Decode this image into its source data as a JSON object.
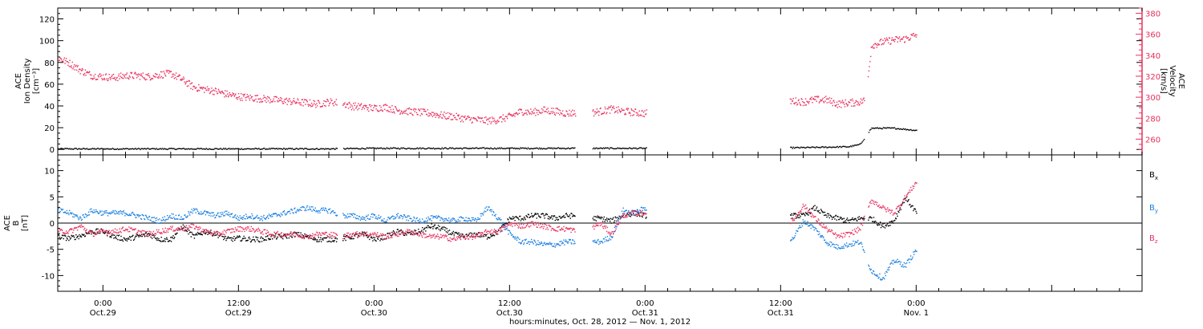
{
  "chart_data": [
    {
      "type": "scatter",
      "panel": "top",
      "ylabel_lines": [
        "ACE",
        "Ion Density",
        "[cm⁻³]"
      ],
      "y2label_lines": [
        "ACE",
        "Velocity",
        "[km/s]"
      ],
      "ylim": [
        -5,
        130
      ],
      "y2lim": [
        245,
        385
      ],
      "yticks": [
        0,
        20,
        40,
        60,
        80,
        100,
        120
      ],
      "y2ticks": [
        260,
        280,
        300,
        320,
        340,
        360,
        380
      ],
      "colors": {
        "density": "#000000",
        "velocity": "#e8305e",
        "axis2": "#e8305e"
      },
      "gaps_hours": [
        [
          20.7,
          21.2
        ],
        [
          41.8,
          43.3
        ],
        [
          48.1,
          60.8
        ],
        [
          67.4,
          67.7
        ]
      ],
      "series": [
        {
          "key": "density",
          "axis": "left",
          "color": "#000000",
          "x_hours": [
            -4,
            0,
            4,
            8,
            12,
            16,
            20,
            24,
            28,
            32,
            36,
            40,
            44,
            48,
            61,
            64,
            66,
            67,
            68,
            70,
            72
          ],
          "values": [
            1,
            1,
            1,
            1,
            1,
            1,
            1,
            1.5,
            1.5,
            1.5,
            1.5,
            1.5,
            1.5,
            1.5,
            2,
            2.5,
            3,
            5,
            20,
            20,
            18
          ]
        },
        {
          "key": "velocity",
          "axis": "right",
          "color": "#e8305e",
          "x_hours": [
            -4,
            -3,
            -2,
            -1,
            0,
            1,
            2,
            3,
            4,
            5,
            6,
            7,
            8,
            9,
            10,
            11,
            12,
            13,
            14,
            15,
            16,
            17,
            18,
            19,
            20,
            21,
            22,
            23,
            24,
            25,
            26,
            27,
            28,
            29,
            30,
            31,
            32,
            33,
            34,
            35,
            36,
            37,
            38,
            39,
            40,
            41,
            42,
            43,
            44,
            45,
            46,
            47,
            48,
            61,
            62,
            63,
            64,
            65,
            66,
            67,
            67.5,
            68,
            69,
            70,
            71,
            72
          ],
          "values": [
            338,
            333,
            326,
            321,
            320,
            319,
            321,
            321,
            320,
            322,
            323,
            317,
            310,
            308,
            306,
            303,
            301,
            300,
            299,
            298,
            297,
            296,
            295,
            294,
            296,
            295,
            292,
            291,
            290,
            291,
            288,
            287,
            286,
            285,
            283,
            282,
            280,
            279,
            278,
            279,
            282,
            287,
            286,
            288,
            287,
            285,
            286,
            285,
            287,
            289,
            287,
            286,
            285,
            297,
            296,
            298,
            298,
            294,
            295,
            296,
            298,
            350,
            353,
            355,
            356,
            360
          ]
        }
      ]
    },
    {
      "type": "scatter",
      "panel": "bottom",
      "ylabel_lines": [
        "ACE",
        "B",
        "[nT]"
      ],
      "ylim": [
        -13,
        13
      ],
      "yticks": [
        -10,
        -5,
        0,
        5,
        10
      ],
      "zero_line": true,
      "gaps_hours": [
        [
          20.7,
          21.2
        ],
        [
          41.8,
          43.3
        ],
        [
          48.1,
          60.8
        ],
        [
          67.4,
          67.7
        ]
      ],
      "legend": [
        "Bₓ",
        "Bᵧ",
        "B_z"
      ],
      "legend_labels": {
        "bx": "B",
        "bx_sub": "x",
        "by": "B",
        "by_sub": "y",
        "bz": "B",
        "bz_sub": "z"
      },
      "series": [
        {
          "key": "bx",
          "color": "#000000",
          "x_hours": [
            -4,
            -3,
            -2,
            -1,
            0,
            1,
            2,
            3,
            4,
            5,
            6,
            7,
            8,
            9,
            10,
            11,
            12,
            13,
            14,
            15,
            16,
            17,
            18,
            19,
            20,
            21,
            22,
            23,
            24,
            25,
            26,
            27,
            28,
            29,
            30,
            31,
            32,
            33,
            34,
            35,
            36,
            37,
            38,
            39,
            40,
            41,
            42,
            43,
            44,
            45,
            46,
            47,
            48,
            61,
            62,
            63,
            64,
            65,
            66,
            67,
            68,
            69,
            70,
            71,
            72
          ],
          "values": [
            -2.5,
            -2.8,
            -2.3,
            -1.5,
            -1.5,
            -2.5,
            -3.0,
            -2.5,
            -2.0,
            -3.0,
            -3.0,
            -0.5,
            -2.5,
            -1.5,
            -2.0,
            -3.0,
            -2.8,
            -3.0,
            -3.0,
            -2.5,
            -2.5,
            -2.0,
            -2.5,
            -3.0,
            -3.0,
            -3.0,
            -2.5,
            -2.0,
            -3.0,
            -2.5,
            -1.5,
            -2.0,
            -1.5,
            -0.5,
            -1.0,
            -2.0,
            -2.5,
            -2.0,
            -2.5,
            -1.5,
            1.0,
            1.0,
            1.5,
            1.5,
            1.0,
            1.5,
            1.5,
            1.0,
            1.0,
            0.5,
            1.5,
            2.0,
            1.5,
            1.5,
            1.5,
            3.0,
            1.5,
            1.0,
            0.5,
            1.0,
            1.0,
            -0.5,
            0.5,
            5.0,
            2.0
          ]
        },
        {
          "key": "by",
          "color": "#1a7fe0",
          "x_hours": [
            -4,
            -3,
            -2,
            -1,
            0,
            1,
            2,
            3,
            4,
            5,
            6,
            7,
            8,
            9,
            10,
            11,
            12,
            13,
            14,
            15,
            16,
            17,
            18,
            19,
            20,
            21,
            22,
            23,
            24,
            25,
            26,
            27,
            28,
            29,
            30,
            31,
            32,
            33,
            34,
            35,
            36,
            37,
            38,
            39,
            40,
            41,
            42,
            43,
            44,
            45,
            46,
            47,
            48,
            61,
            62,
            63,
            64,
            65,
            66,
            67,
            68,
            69,
            70,
            71,
            72
          ],
          "values": [
            2.5,
            2.0,
            1.0,
            2.5,
            2.0,
            2.0,
            2.0,
            1.5,
            1.0,
            0.5,
            1.5,
            1.0,
            2.5,
            2.0,
            1.5,
            2.0,
            1.0,
            1.5,
            1.0,
            1.5,
            2.0,
            2.5,
            3.0,
            2.5,
            2.5,
            1.5,
            1.5,
            1.0,
            1.5,
            0.5,
            1.5,
            1.0,
            0.5,
            1.0,
            1.0,
            0.5,
            1.0,
            0.5,
            3.0,
            1.0,
            -2.0,
            -3.5,
            -3.5,
            -4.0,
            -4.0,
            -3.5,
            -3.5,
            -3.5,
            -3.5,
            -2.5,
            2.5,
            2.0,
            3.0,
            -3.0,
            0.5,
            -1.0,
            -3.5,
            -4.5,
            -4.0,
            -3.5,
            -9.0,
            -10.5,
            -7.0,
            -8.0,
            -5.0
          ]
        },
        {
          "key": "bz",
          "color": "#e8305e",
          "x_hours": [
            -4,
            -3,
            -2,
            -1,
            0,
            1,
            2,
            3,
            4,
            5,
            6,
            7,
            8,
            9,
            10,
            11,
            12,
            13,
            14,
            15,
            16,
            17,
            18,
            19,
            20,
            21,
            22,
            23,
            24,
            25,
            26,
            27,
            28,
            29,
            30,
            31,
            32,
            33,
            34,
            35,
            36,
            37,
            38,
            39,
            40,
            41,
            42,
            43,
            44,
            45,
            46,
            47,
            48,
            61,
            62,
            63,
            64,
            65,
            66,
            67,
            68,
            69,
            70,
            71,
            72
          ],
          "values": [
            -1.5,
            -1.5,
            -0.5,
            -2.0,
            -1.5,
            -1.5,
            -1.0,
            -1.5,
            -2.0,
            -1.5,
            -1.0,
            -1.0,
            -0.5,
            -1.5,
            -2.0,
            -1.5,
            -1.0,
            -1.0,
            -1.5,
            -2.0,
            -2.0,
            -2.0,
            -2.5,
            -2.0,
            -2.0,
            -2.5,
            -2.0,
            -2.0,
            -2.0,
            -2.5,
            -2.0,
            -1.5,
            -2.0,
            -2.5,
            -2.5,
            -3.0,
            -2.5,
            -2.5,
            -1.5,
            -1.5,
            0.0,
            -0.5,
            0.0,
            -0.5,
            -1.0,
            -1.0,
            -1.5,
            -1.0,
            0.0,
            -2.0,
            1.5,
            2.0,
            2.0,
            0.5,
            3.5,
            1.0,
            -1.0,
            -2.5,
            -2.0,
            -1.0,
            4.5,
            3.0,
            2.0,
            5.0,
            8.0
          ]
        }
      ]
    }
  ],
  "xaxis": {
    "xlim_hours": [
      -4,
      92
    ],
    "ticks": [
      {
        "hour": 0,
        "time": "0:00",
        "date": "Oct.29"
      },
      {
        "hour": 12,
        "time": "12:00",
        "date": "Oct.29"
      },
      {
        "hour": 24,
        "time": "0:00",
        "date": "Oct.30"
      },
      {
        "hour": 36,
        "time": "12:00",
        "date": "Oct.30"
      },
      {
        "hour": 48,
        "time": "0:00",
        "date": "Oct.31"
      },
      {
        "hour": 60,
        "time": "12:00",
        "date": "Oct.31"
      },
      {
        "hour": 72,
        "time": "0:00",
        "date": "Nov. 1"
      }
    ],
    "minor_step_hours": 2,
    "xlabel": "hours:minutes, Oct. 28, 2012 — Nov.  1, 2012"
  }
}
